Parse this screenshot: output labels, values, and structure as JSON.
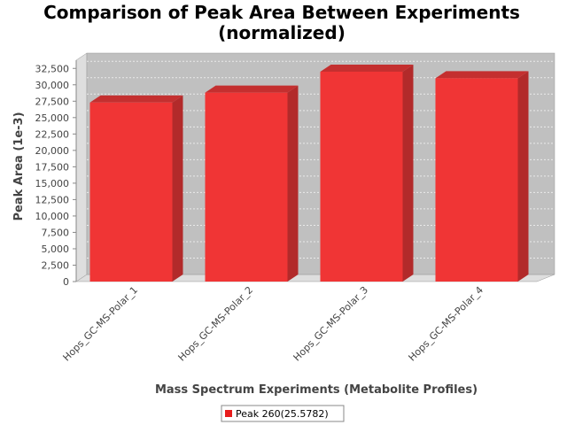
{
  "chart_data": {
    "type": "bar",
    "title": "Comparison of Peak Area Between Experiments",
    "subtitle": "(normalized)",
    "xlabel": "Mass Spectrum Experiments (Metabolite Profiles)",
    "ylabel": "Peak Area (1e-3)",
    "categories": [
      "Hops_GC-MS-Polar_1",
      "Hops_GC-MS-Polar_2",
      "Hops_GC-MS-Polar_3",
      "Hops_GC-MS-Polar_4"
    ],
    "series": [
      {
        "name": "Peak 260(25.5782)",
        "values": [
          27300,
          28800,
          32000,
          31000
        ]
      }
    ],
    "ylim": [
      0,
      33750
    ],
    "yticks": [
      0,
      2500,
      5000,
      7500,
      10000,
      12500,
      15000,
      17500,
      20000,
      22500,
      25000,
      27500,
      30000,
      32500
    ],
    "ytick_labels": [
      "0",
      "2,500",
      "5,000",
      "7,500",
      "10,000",
      "12,500",
      "15,000",
      "17,500",
      "20,000",
      "22,500",
      "25,000",
      "27,500",
      "30,000",
      "32,500"
    ],
    "grid": true,
    "style": "3d",
    "legend_position": "bottom",
    "colors": {
      "bar_front": "#f03535",
      "bar_side": "#b22a2a",
      "bar_top": "#c42f2f",
      "plot_bg": "#c0c0c0",
      "wall_side": "#dedede",
      "gridline": "#eaeaea"
    }
  }
}
